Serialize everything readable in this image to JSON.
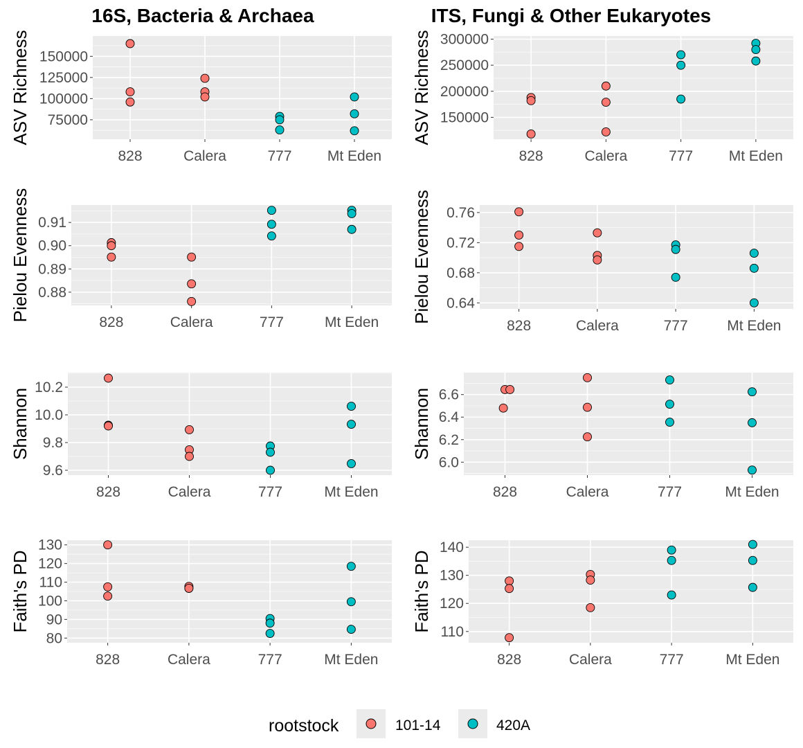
{
  "columns": [
    {
      "key": "bac",
      "title": "16S, Bacteria & Archaea"
    },
    {
      "key": "its",
      "title": "ITS, Fungi & Other Eukaryotes"
    }
  ],
  "legend": {
    "title": "rootstock",
    "items": [
      {
        "label": "101-14",
        "color": "#F8766D"
      },
      {
        "label": "420A",
        "color": "#00BFC4"
      }
    ]
  },
  "style": {
    "panel_bg": "#EBEBEB",
    "grid_major": "#FFFFFF",
    "point_stroke": "#000000"
  },
  "chart_data": [
    {
      "type": "scatter",
      "column": "bac",
      "ylabel": "ASV Richness",
      "categories": [
        "828",
        "Calera",
        "777",
        "Mt Eden"
      ],
      "ylim": [
        52000,
        174000
      ],
      "yticks": [
        75000,
        100000,
        125000,
        150000
      ],
      "ytick_labels": [
        "75000",
        "100000",
        "125000",
        "150000"
      ],
      "series": [
        {
          "name": "101-14",
          "points": [
            {
              "x": "828",
              "y": 165000
            },
            {
              "x": "828",
              "y": 108000
            },
            {
              "x": "828",
              "y": 96000
            },
            {
              "x": "Calera",
              "y": 124000
            },
            {
              "x": "Calera",
              "y": 108000
            },
            {
              "x": "Calera",
              "y": 102000
            }
          ]
        },
        {
          "name": "420A",
          "points": [
            {
              "x": "777",
              "y": 79000
            },
            {
              "x": "777",
              "y": 75000
            },
            {
              "x": "777",
              "y": 63000
            },
            {
              "x": "Mt Eden",
              "y": 102000
            },
            {
              "x": "Mt Eden",
              "y": 82000
            },
            {
              "x": "Mt Eden",
              "y": 62000
            }
          ]
        }
      ]
    },
    {
      "type": "scatter",
      "column": "its",
      "ylabel": "ASV Richness",
      "categories": [
        "828",
        "Calera",
        "777",
        "Mt Eden"
      ],
      "ylim": [
        108000,
        306000
      ],
      "yticks": [
        150000,
        200000,
        250000,
        300000
      ],
      "ytick_labels": [
        "150000",
        "200000",
        "250000",
        "300000"
      ],
      "series": [
        {
          "name": "101-14",
          "points": [
            {
              "x": "828",
              "y": 188000
            },
            {
              "x": "828",
              "y": 182000
            },
            {
              "x": "828",
              "y": 118000
            },
            {
              "x": "Calera",
              "y": 210000
            },
            {
              "x": "Calera",
              "y": 179000
            },
            {
              "x": "Calera",
              "y": 122000
            }
          ]
        },
        {
          "name": "420A",
          "points": [
            {
              "x": "777",
              "y": 270000
            },
            {
              "x": "777",
              "y": 250000
            },
            {
              "x": "777",
              "y": 185000
            },
            {
              "x": "Mt Eden",
              "y": 292000
            },
            {
              "x": "Mt Eden",
              "y": 280000
            },
            {
              "x": "Mt Eden",
              "y": 258000
            }
          ]
        }
      ]
    },
    {
      "type": "scatter",
      "column": "bac",
      "ylabel": "Pielou Evenness",
      "categories": [
        "828",
        "Calera",
        "777",
        "Mt Eden"
      ],
      "ylim": [
        0.8743,
        0.9175
      ],
      "yticks": [
        0.88,
        0.89,
        0.9,
        0.91
      ],
      "ytick_labels": [
        "0.88",
        "0.89",
        "0.90",
        "0.91"
      ],
      "series": [
        {
          "name": "101-14",
          "points": [
            {
              "x": "828",
              "y": 0.9013
            },
            {
              "x": "828",
              "y": 0.9
            },
            {
              "x": "828",
              "y": 0.8951
            },
            {
              "x": "Calera",
              "y": 0.8951
            },
            {
              "x": "Calera",
              "y": 0.8836
            },
            {
              "x": "Calera",
              "y": 0.876
            }
          ]
        },
        {
          "name": "420A",
          "points": [
            {
              "x": "777",
              "y": 0.9152
            },
            {
              "x": "777",
              "y": 0.9092
            },
            {
              "x": "777",
              "y": 0.9042
            },
            {
              "x": "Mt Eden",
              "y": 0.9152
            },
            {
              "x": "Mt Eden",
              "y": 0.9138
            },
            {
              "x": "Mt Eden",
              "y": 0.907
            }
          ]
        }
      ]
    },
    {
      "type": "scatter",
      "column": "its",
      "ylabel": "Pielou Evenness",
      "categories": [
        "828",
        "Calera",
        "777",
        "Mt Eden"
      ],
      "ylim": [
        0.632,
        0.77
      ],
      "yticks": [
        0.64,
        0.68,
        0.72,
        0.76
      ],
      "ytick_labels": [
        "0.64",
        "0.68",
        "0.72",
        "0.76"
      ],
      "series": [
        {
          "name": "101-14",
          "points": [
            {
              "x": "828",
              "y": 0.761
            },
            {
              "x": "828",
              "y": 0.73
            },
            {
              "x": "828",
              "y": 0.715
            },
            {
              "x": "Calera",
              "y": 0.733
            },
            {
              "x": "Calera",
              "y": 0.703
            },
            {
              "x": "Calera",
              "y": 0.697
            }
          ]
        },
        {
          "name": "420A",
          "points": [
            {
              "x": "777",
              "y": 0.717
            },
            {
              "x": "777",
              "y": 0.711
            },
            {
              "x": "777",
              "y": 0.674
            },
            {
              "x": "Mt Eden",
              "y": 0.706
            },
            {
              "x": "Mt Eden",
              "y": 0.686
            },
            {
              "x": "Mt Eden",
              "y": 0.64
            }
          ]
        }
      ]
    },
    {
      "type": "scatter",
      "column": "bac",
      "ylabel": "Shannon",
      "categories": [
        "828",
        "Calera",
        "777",
        "Mt Eden"
      ],
      "ylim": [
        9.565,
        10.305
      ],
      "yticks": [
        9.6,
        9.8,
        10.0,
        10.2
      ],
      "ytick_labels": [
        "9.6",
        "9.8",
        "10.0",
        "10.2"
      ],
      "series": [
        {
          "name": "101-14",
          "points": [
            {
              "x": "828",
              "y": 10.265
            },
            {
              "x": "828",
              "y": 9.925
            },
            {
              "x": "828",
              "y": 9.92
            },
            {
              "x": "Calera",
              "y": 9.893
            },
            {
              "x": "Calera",
              "y": 9.748
            },
            {
              "x": "Calera",
              "y": 9.7
            }
          ]
        },
        {
          "name": "420A",
          "points": [
            {
              "x": "777",
              "y": 9.775
            },
            {
              "x": "777",
              "y": 9.73
            },
            {
              "x": "777",
              "y": 9.6
            },
            {
              "x": "Mt Eden",
              "y": 10.062
            },
            {
              "x": "Mt Eden",
              "y": 9.932
            },
            {
              "x": "Mt Eden",
              "y": 9.648
            }
          ]
        }
      ]
    },
    {
      "type": "scatter",
      "column": "its",
      "ylabel": "Shannon",
      "categories": [
        "828",
        "Calera",
        "777",
        "Mt Eden"
      ],
      "ylim": [
        5.885,
        6.795
      ],
      "yticks": [
        6.0,
        6.2,
        6.4,
        6.6
      ],
      "ytick_labels": [
        "6.0",
        "6.2",
        "6.4",
        "6.6"
      ],
      "series": [
        {
          "name": "101-14",
          "points": [
            {
              "x": "828",
              "y": 6.645
            },
            {
              "x": "828",
              "y": 6.645
            },
            {
              "x": "828",
              "y": 6.48
            },
            {
              "x": "Calera",
              "y": 6.75
            },
            {
              "x": "Calera",
              "y": 6.487
            },
            {
              "x": "Calera",
              "y": 6.225
            }
          ]
        },
        {
          "name": "420A",
          "points": [
            {
              "x": "777",
              "y": 6.73
            },
            {
              "x": "777",
              "y": 6.515
            },
            {
              "x": "777",
              "y": 6.355
            },
            {
              "x": "Mt Eden",
              "y": 6.625
            },
            {
              "x": "Mt Eden",
              "y": 6.35
            },
            {
              "x": "Mt Eden",
              "y": 5.93
            }
          ]
        }
      ]
    },
    {
      "type": "scatter",
      "column": "bac",
      "ylabel": "Faith's PD",
      "categories": [
        "828",
        "Calera",
        "777",
        "Mt Eden"
      ],
      "ylim": [
        77.5,
        132.5
      ],
      "yticks": [
        80,
        90,
        100,
        110,
        120,
        130
      ],
      "ytick_labels": [
        "80",
        "90",
        "100",
        "110",
        "120",
        "130"
      ],
      "series": [
        {
          "name": "101-14",
          "points": [
            {
              "x": "828",
              "y": 130.0
            },
            {
              "x": "828",
              "y": 107.5
            },
            {
              "x": "828",
              "y": 102.5
            },
            {
              "x": "Calera",
              "y": 106.7
            },
            {
              "x": "Calera",
              "y": 107.7
            },
            {
              "x": "Calera",
              "y": 106.7
            }
          ]
        },
        {
          "name": "420A",
          "points": [
            {
              "x": "777",
              "y": 90.5
            },
            {
              "x": "777",
              "y": 88.0
            },
            {
              "x": "777",
              "y": 82.5
            },
            {
              "x": "Mt Eden",
              "y": 118.5
            },
            {
              "x": "Mt Eden",
              "y": 99.5
            },
            {
              "x": "Mt Eden",
              "y": 84.7
            }
          ]
        }
      ]
    },
    {
      "type": "scatter",
      "column": "its",
      "ylabel": "Faith's PD",
      "categories": [
        "828",
        "Calera",
        "777",
        "Mt Eden"
      ],
      "ylim": [
        106,
        142.5
      ],
      "yticks": [
        110,
        120,
        130,
        140
      ],
      "ytick_labels": [
        "110",
        "120",
        "130",
        "140"
      ],
      "series": [
        {
          "name": "101-14",
          "points": [
            {
              "x": "828",
              "y": 128.0
            },
            {
              "x": "828",
              "y": 125.3
            },
            {
              "x": "828",
              "y": 107.8
            },
            {
              "x": "Calera",
              "y": 130.3
            },
            {
              "x": "Calera",
              "y": 128.3
            },
            {
              "x": "Calera",
              "y": 118.5
            }
          ]
        },
        {
          "name": "420A",
          "points": [
            {
              "x": "777",
              "y": 139.0
            },
            {
              "x": "777",
              "y": 135.3
            },
            {
              "x": "777",
              "y": 123.0
            },
            {
              "x": "Mt Eden",
              "y": 141.0
            },
            {
              "x": "Mt Eden",
              "y": 135.3
            },
            {
              "x": "Mt Eden",
              "y": 125.7
            }
          ]
        }
      ]
    }
  ]
}
